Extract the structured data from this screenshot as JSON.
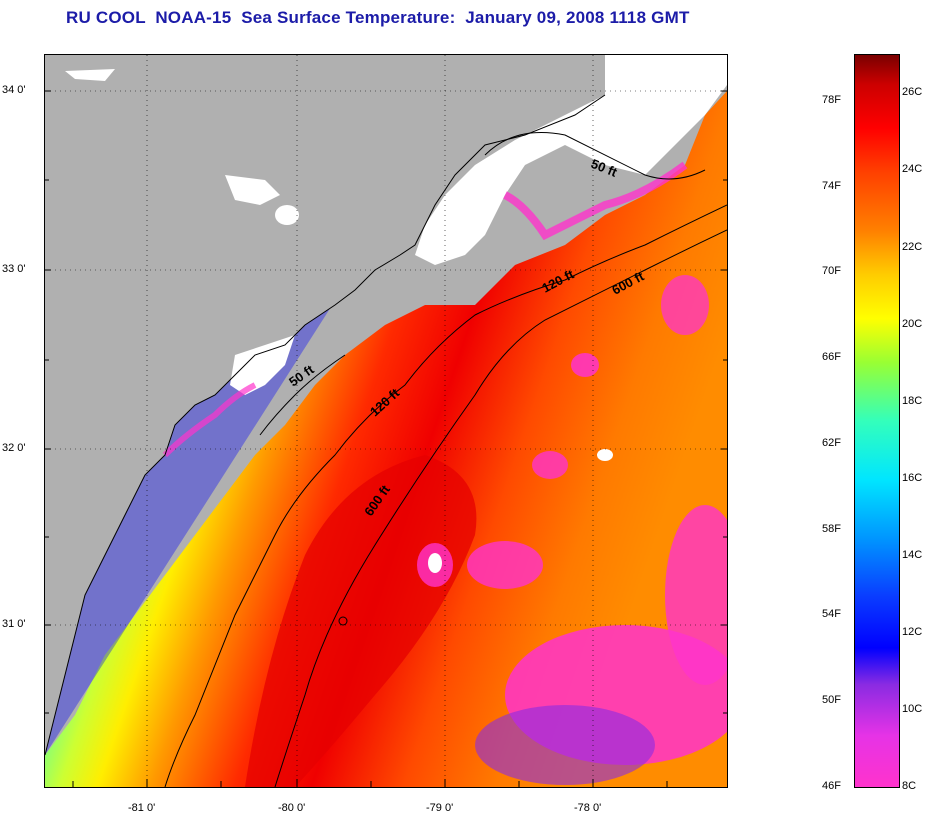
{
  "title": "RU COOL  NOAA-15  Sea Surface Temperature:  January 09, 2008 1118 GMT",
  "map": {
    "lat_labels": [
      "34 0'",
      "33 0'",
      "32 0'",
      "31 0'"
    ],
    "lon_labels": [
      "-81 0'",
      "-80 0'",
      "-79 0'",
      "-78 0'"
    ],
    "isobaths": [
      "50 ft",
      "120 ft",
      "600 ft",
      "50 ft",
      "120 ft",
      "600 ft"
    ],
    "colors": {
      "land": "#b0b0b0",
      "cloud": "#ffffff",
      "cold": "#ff33cc",
      "warm": "#ff0000"
    }
  },
  "colorbar": {
    "fahrenheit": [
      "78F",
      "74F",
      "70F",
      "66F",
      "62F",
      "58F",
      "54F",
      "50F",
      "46F"
    ],
    "celsius": [
      "26C",
      "24C",
      "22C",
      "20C",
      "18C",
      "16C",
      "14C",
      "12C",
      "10C",
      "8C"
    ]
  }
}
